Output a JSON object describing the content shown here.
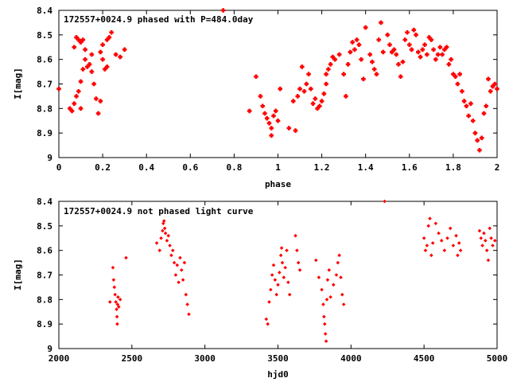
{
  "chart_data": [
    {
      "type": "scatter",
      "title": "172557+0024.9 phased with P=484.0day",
      "xlabel": "phase",
      "ylabel": "I[mag]",
      "xlim": [
        0,
        2
      ],
      "ylim": [
        8.4,
        9
      ],
      "y_inverted": true,
      "grid": false,
      "marker_color": "#ff0000",
      "x_ticks": [
        0,
        0.2,
        0.4,
        0.6,
        0.8,
        1,
        1.2,
        1.4,
        1.6,
        1.8,
        2
      ],
      "x_tick_labels": [
        "0",
        "0.2",
        "0.4",
        "0.6",
        "0.8",
        "1",
        "1.2",
        "1.4",
        "1.6",
        "1.8",
        "2"
      ],
      "y_ticks": [
        8.4,
        8.5,
        8.6,
        8.7,
        8.8,
        8.9,
        9
      ],
      "y_tick_labels": [
        "8.4",
        "8.5",
        "8.6",
        "8.7",
        "8.8",
        "8.9",
        "9"
      ],
      "points": [
        [
          0.0,
          8.72
        ],
        [
          0.05,
          8.8
        ],
        [
          0.06,
          8.81
        ],
        [
          0.07,
          8.78
        ],
        [
          0.08,
          8.75
        ],
        [
          0.09,
          8.73
        ],
        [
          0.1,
          8.8
        ],
        [
          0.07,
          8.55
        ],
        [
          0.08,
          8.51
        ],
        [
          0.09,
          8.52
        ],
        [
          0.1,
          8.53
        ],
        [
          0.11,
          8.52
        ],
        [
          0.12,
          8.56
        ],
        [
          0.1,
          8.69
        ],
        [
          0.11,
          8.64
        ],
        [
          0.12,
          8.6
        ],
        [
          0.13,
          8.63
        ],
        [
          0.14,
          8.62
        ],
        [
          0.15,
          8.58
        ],
        [
          0.15,
          8.65
        ],
        [
          0.16,
          8.7
        ],
        [
          0.17,
          8.76
        ],
        [
          0.18,
          8.82
        ],
        [
          0.19,
          8.77
        ],
        [
          0.2,
          8.6
        ],
        [
          0.19,
          8.57
        ],
        [
          0.2,
          8.54
        ],
        [
          0.21,
          8.64
        ],
        [
          0.22,
          8.63
        ],
        [
          0.23,
          8.51
        ],
        [
          0.22,
          8.52
        ],
        [
          0.24,
          8.49
        ],
        [
          0.26,
          8.58
        ],
        [
          0.28,
          8.59
        ],
        [
          0.3,
          8.56
        ],
        [
          0.75,
          8.4
        ],
        [
          0.87,
          8.81
        ],
        [
          0.9,
          8.67
        ],
        [
          0.92,
          8.75
        ],
        [
          0.93,
          8.79
        ],
        [
          0.94,
          8.82
        ],
        [
          0.95,
          8.84
        ],
        [
          0.96,
          8.86
        ],
        [
          0.97,
          8.88
        ],
        [
          0.97,
          8.91
        ],
        [
          0.98,
          8.83
        ],
        [
          0.99,
          8.81
        ],
        [
          1.0,
          8.85
        ],
        [
          1.01,
          8.72
        ],
        [
          1.05,
          8.88
        ],
        [
          1.07,
          8.77
        ],
        [
          1.08,
          8.89
        ],
        [
          1.09,
          8.75
        ],
        [
          1.1,
          8.72
        ],
        [
          1.11,
          8.63
        ],
        [
          1.12,
          8.73
        ],
        [
          1.13,
          8.7
        ],
        [
          1.14,
          8.66
        ],
        [
          1.15,
          8.72
        ],
        [
          1.16,
          8.78
        ],
        [
          1.17,
          8.76
        ],
        [
          1.18,
          8.8
        ],
        [
          1.19,
          8.79
        ],
        [
          1.2,
          8.77
        ],
        [
          1.21,
          8.74
        ],
        [
          1.22,
          8.7
        ],
        [
          1.22,
          8.66
        ],
        [
          1.23,
          8.64
        ],
        [
          1.24,
          8.62
        ],
        [
          1.25,
          8.59
        ],
        [
          1.26,
          8.6
        ],
        [
          1.28,
          8.58
        ],
        [
          1.3,
          8.66
        ],
        [
          1.31,
          8.75
        ],
        [
          1.32,
          8.62
        ],
        [
          1.33,
          8.57
        ],
        [
          1.34,
          8.53
        ],
        [
          1.35,
          8.56
        ],
        [
          1.36,
          8.52
        ],
        [
          1.37,
          8.54
        ],
        [
          1.38,
          8.6
        ],
        [
          1.39,
          8.68
        ],
        [
          1.4,
          8.47
        ],
        [
          1.42,
          8.58
        ],
        [
          1.43,
          8.61
        ],
        [
          1.44,
          8.64
        ],
        [
          1.45,
          8.66
        ],
        [
          1.46,
          8.52
        ],
        [
          1.47,
          8.45
        ],
        [
          1.48,
          8.57
        ],
        [
          1.5,
          8.5
        ],
        [
          1.51,
          8.54
        ],
        [
          1.52,
          8.57
        ],
        [
          1.53,
          8.56
        ],
        [
          1.54,
          8.58
        ],
        [
          1.55,
          8.62
        ],
        [
          1.56,
          8.67
        ],
        [
          1.57,
          8.61
        ],
        [
          1.58,
          8.52
        ],
        [
          1.59,
          8.49
        ],
        [
          1.6,
          8.54
        ],
        [
          1.61,
          8.56
        ],
        [
          1.62,
          8.48
        ],
        [
          1.63,
          8.5
        ],
        [
          1.64,
          8.57
        ],
        [
          1.65,
          8.59
        ],
        [
          1.66,
          8.56
        ],
        [
          1.67,
          8.54
        ],
        [
          1.68,
          8.58
        ],
        [
          1.69,
          8.51
        ],
        [
          1.7,
          8.52
        ],
        [
          1.71,
          8.56
        ],
        [
          1.72,
          8.6
        ],
        [
          1.73,
          8.58
        ],
        [
          1.74,
          8.55
        ],
        [
          1.75,
          8.58
        ],
        [
          1.76,
          8.56
        ],
        [
          1.77,
          8.55
        ],
        [
          1.78,
          8.62
        ],
        [
          1.79,
          8.6
        ],
        [
          1.8,
          8.66
        ],
        [
          1.81,
          8.67
        ],
        [
          1.82,
          8.7
        ],
        [
          1.83,
          8.66
        ],
        [
          1.84,
          8.73
        ],
        [
          1.85,
          8.77
        ],
        [
          1.86,
          8.79
        ],
        [
          1.87,
          8.83
        ],
        [
          1.88,
          8.78
        ],
        [
          1.89,
          8.85
        ],
        [
          1.9,
          8.9
        ],
        [
          1.91,
          8.93
        ],
        [
          1.92,
          8.97
        ],
        [
          1.93,
          8.92
        ],
        [
          1.94,
          8.82
        ],
        [
          1.95,
          8.79
        ],
        [
          1.96,
          8.68
        ],
        [
          1.97,
          8.73
        ],
        [
          1.98,
          8.71
        ],
        [
          1.99,
          8.7
        ],
        [
          2.0,
          8.72
        ]
      ]
    },
    {
      "type": "scatter",
      "title": "172557+0024.9 not phased light curve",
      "xlabel": "hjd0",
      "ylabel": "I[mag]",
      "xlim": [
        2000,
        5000
      ],
      "ylim": [
        8.4,
        9
      ],
      "y_inverted": true,
      "grid": false,
      "marker_color": "#ff0000",
      "x_ticks": [
        2000,
        2500,
        3000,
        3500,
        4000,
        4500,
        5000
      ],
      "x_tick_labels": [
        "2000",
        "2500",
        "3000",
        "3500",
        "4000",
        "4500",
        "5000"
      ],
      "y_ticks": [
        8.4,
        8.5,
        8.6,
        8.7,
        8.8,
        8.9,
        9
      ],
      "y_tick_labels": [
        "8.4",
        "8.5",
        "8.6",
        "8.7",
        "8.8",
        "8.9",
        "9"
      ],
      "points": [
        [
          2350,
          8.81
        ],
        [
          2370,
          8.67
        ],
        [
          2375,
          8.72
        ],
        [
          2380,
          8.75
        ],
        [
          2385,
          8.78
        ],
        [
          2390,
          8.81
        ],
        [
          2395,
          8.84
        ],
        [
          2398,
          8.87
        ],
        [
          2400,
          8.9
        ],
        [
          2402,
          8.82
        ],
        [
          2405,
          8.79
        ],
        [
          2410,
          8.83
        ],
        [
          2420,
          8.8
        ],
        [
          2460,
          8.63
        ],
        [
          2670,
          8.57
        ],
        [
          2690,
          8.6
        ],
        [
          2700,
          8.55
        ],
        [
          2710,
          8.52
        ],
        [
          2715,
          8.49
        ],
        [
          2720,
          8.48
        ],
        [
          2725,
          8.51
        ],
        [
          2730,
          8.53
        ],
        [
          2740,
          8.56
        ],
        [
          2750,
          8.54
        ],
        [
          2760,
          8.58
        ],
        [
          2770,
          8.62
        ],
        [
          2780,
          8.6
        ],
        [
          2790,
          8.65
        ],
        [
          2800,
          8.7
        ],
        [
          2810,
          8.66
        ],
        [
          2820,
          8.73
        ],
        [
          2830,
          8.63
        ],
        [
          2840,
          8.68
        ],
        [
          2850,
          8.72
        ],
        [
          2860,
          8.65
        ],
        [
          2870,
          8.78
        ],
        [
          2880,
          8.82
        ],
        [
          2890,
          8.86
        ],
        [
          3420,
          8.88
        ],
        [
          3430,
          8.9
        ],
        [
          3440,
          8.81
        ],
        [
          3450,
          8.76
        ],
        [
          3460,
          8.7
        ],
        [
          3470,
          8.66
        ],
        [
          3480,
          8.72
        ],
        [
          3490,
          8.78
        ],
        [
          3500,
          8.74
        ],
        [
          3510,
          8.69
        ],
        [
          3520,
          8.62
        ],
        [
          3525,
          8.59
        ],
        [
          3530,
          8.65
        ],
        [
          3540,
          8.71
        ],
        [
          3550,
          8.67
        ],
        [
          3560,
          8.6
        ],
        [
          3570,
          8.73
        ],
        [
          3580,
          8.78
        ],
        [
          3620,
          8.54
        ],
        [
          3630,
          8.6
        ],
        [
          3640,
          8.65
        ],
        [
          3650,
          8.68
        ],
        [
          3760,
          8.64
        ],
        [
          3780,
          8.71
        ],
        [
          3800,
          8.76
        ],
        [
          3810,
          8.82
        ],
        [
          3815,
          8.87
        ],
        [
          3820,
          8.9
        ],
        [
          3825,
          8.94
        ],
        [
          3830,
          8.97
        ],
        [
          3835,
          8.8
        ],
        [
          3840,
          8.72
        ],
        [
          3850,
          8.68
        ],
        [
          3860,
          8.79
        ],
        [
          3880,
          8.74
        ],
        [
          3900,
          8.7
        ],
        [
          3910,
          8.65
        ],
        [
          3920,
          8.62
        ],
        [
          3930,
          8.71
        ],
        [
          3940,
          8.78
        ],
        [
          3950,
          8.82
        ],
        [
          4230,
          8.4
        ],
        [
          4500,
          8.55
        ],
        [
          4510,
          8.6
        ],
        [
          4520,
          8.58
        ],
        [
          4530,
          8.5
        ],
        [
          4540,
          8.47
        ],
        [
          4550,
          8.62
        ],
        [
          4560,
          8.57
        ],
        [
          4580,
          8.49
        ],
        [
          4600,
          8.53
        ],
        [
          4620,
          8.56
        ],
        [
          4640,
          8.6
        ],
        [
          4660,
          8.55
        ],
        [
          4680,
          8.51
        ],
        [
          4700,
          8.58
        ],
        [
          4720,
          8.54
        ],
        [
          4730,
          8.62
        ],
        [
          4740,
          8.57
        ],
        [
          4750,
          8.6
        ],
        [
          4880,
          8.52
        ],
        [
          4890,
          8.55
        ],
        [
          4900,
          8.58
        ],
        [
          4910,
          8.53
        ],
        [
          4920,
          8.56
        ],
        [
          4930,
          8.6
        ],
        [
          4940,
          8.64
        ],
        [
          4950,
          8.51
        ],
        [
          4960,
          8.55
        ],
        [
          4970,
          8.58
        ],
        [
          4985,
          8.56
        ]
      ]
    }
  ]
}
